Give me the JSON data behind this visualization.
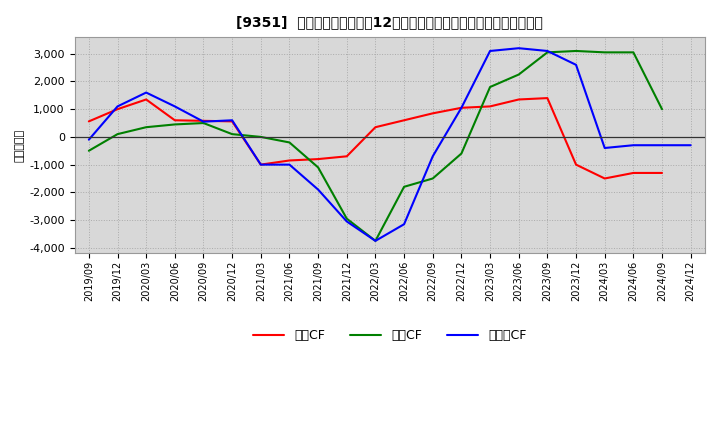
{
  "title": "[9351]  キャッシュフローの12か月移動合計の対前年同期増減額の推移",
  "ylabel": "（百万円）",
  "background_color": "#ffffff",
  "plot_background": "#d8d8d8",
  "x_labels": [
    "2019/09",
    "2019/12",
    "2020/03",
    "2020/06",
    "2020/09",
    "2020/12",
    "2021/03",
    "2021/06",
    "2021/09",
    "2021/12",
    "2022/03",
    "2022/06",
    "2022/09",
    "2022/12",
    "2023/03",
    "2023/06",
    "2023/09",
    "2023/12",
    "2024/03",
    "2024/06",
    "2024/09",
    "2024/12"
  ],
  "operating_cf": [
    560,
    1000,
    1350,
    600,
    580,
    560,
    -1000,
    -850,
    -800,
    -700,
    350,
    600,
    850,
    1050,
    1100,
    1350,
    1400,
    -1000,
    -1500,
    -1300,
    -1300,
    null
  ],
  "investing_cf": [
    -500,
    100,
    350,
    450,
    500,
    100,
    0,
    -200,
    -1100,
    -2950,
    -3750,
    -1800,
    -1500,
    -600,
    1800,
    2250,
    3050,
    3100,
    3050,
    3050,
    1000,
    null
  ],
  "free_cf": [
    -100,
    1100,
    1600,
    1100,
    550,
    600,
    -1000,
    -1000,
    -1900,
    -3050,
    -3750,
    -3150,
    -700,
    1050,
    3100,
    3200,
    3100,
    2600,
    -400,
    -300,
    -300,
    -300
  ],
  "ylim": [
    -4200,
    3600
  ],
  "yticks": [
    -4000,
    -3000,
    -2000,
    -1000,
    0,
    1000,
    2000,
    3000
  ],
  "line_colors": {
    "operating": "#ff0000",
    "investing": "#008000",
    "free": "#0000ff"
  },
  "legend_labels": [
    "営業CF",
    "投資CF",
    "フリーCF"
  ]
}
